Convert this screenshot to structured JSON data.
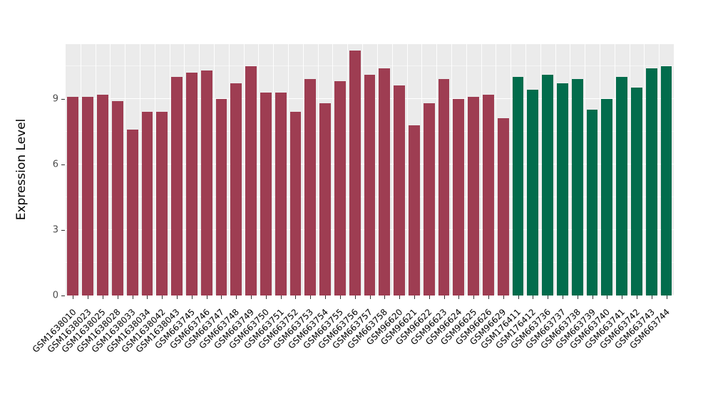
{
  "chart_data": {
    "type": "bar",
    "title": "",
    "xlabel": "",
    "ylabel": "Expression Level",
    "ylim": [
      0,
      11.5
    ],
    "yticks": [
      0,
      3,
      6,
      9
    ],
    "grid": "on",
    "legend": "none",
    "panel_background": "#ebebeb",
    "gridline_color": "#ffffff",
    "categories": [
      "GSM1638010",
      "GSM1638023",
      "GSM1638025",
      "GSM1638028",
      "GSM1638033",
      "GSM1638034",
      "GSM1638042",
      "GSM1638043",
      "GSM663745",
      "GSM663746",
      "GSM663747",
      "GSM663748",
      "GSM663749",
      "GSM663750",
      "GSM663751",
      "GSM663752",
      "GSM663753",
      "GSM663754",
      "GSM663755",
      "GSM663756",
      "GSM663757",
      "GSM663758",
      "GSM96620",
      "GSM96621",
      "GSM96622",
      "GSM96623",
      "GSM96624",
      "GSM96625",
      "GSM96626",
      "GSM96629",
      "GSM176411",
      "GSM176412",
      "GSM663736",
      "GSM663737",
      "GSM663738",
      "GSM663739",
      "GSM663740",
      "GSM663741",
      "GSM663742",
      "GSM663743",
      "GSM663744"
    ],
    "values": [
      9.1,
      9.1,
      9.2,
      8.9,
      7.6,
      8.4,
      8.4,
      10.0,
      10.2,
      10.3,
      9.0,
      9.7,
      10.5,
      9.3,
      9.3,
      8.4,
      9.9,
      8.8,
      9.8,
      11.2,
      10.1,
      10.4,
      9.6,
      7.8,
      8.8,
      9.9,
      9.0,
      9.1,
      9.2,
      8.1,
      10.0,
      9.4,
      10.1,
      9.7,
      9.9,
      8.5,
      9.0,
      10.0,
      9.5,
      10.4,
      10.5
    ],
    "color_groups": [
      {
        "name": "group-1",
        "color": "#9E3D52",
        "start": 0,
        "end": 29
      },
      {
        "name": "group-2",
        "color": "#026C4C",
        "start": 30,
        "end": 40
      }
    ]
  }
}
